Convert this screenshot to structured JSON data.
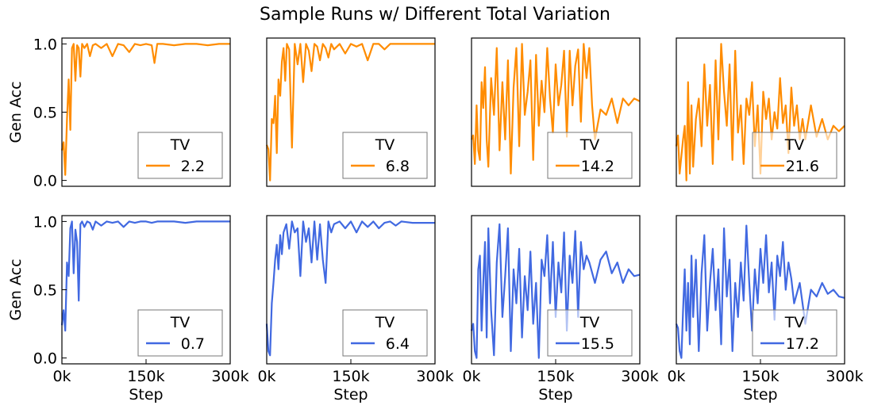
{
  "figure": {
    "title": "Sample Runs w/ Different Total Variation"
  },
  "chart_data": [
    {
      "type": "line",
      "row": 0,
      "col": 0,
      "color": "#FF8C00",
      "title": "",
      "xlabel": "",
      "ylabel": "Gen Acc",
      "xlim": [
        0,
        300000
      ],
      "ylim": [
        0,
        1
      ],
      "xticks": [],
      "xticklabels": [],
      "yticks": [
        0,
        0.5,
        1
      ],
      "yticklabels": [
        "0.0",
        "0.5",
        "1.0"
      ],
      "legend": {
        "title": "TV",
        "label": "2.2",
        "loc": "lower right"
      },
      "x": [
        0,
        3000,
        6000,
        9000,
        12000,
        15000,
        18000,
        21000,
        24000,
        27000,
        30000,
        33000,
        36000,
        40000,
        45000,
        50000,
        55000,
        60000,
        70000,
        80000,
        90000,
        100000,
        110000,
        120000,
        130000,
        140000,
        150000,
        160000,
        165000,
        170000,
        180000,
        200000,
        220000,
        240000,
        260000,
        280000,
        300000
      ],
      "y": [
        0.22,
        0.28,
        0.04,
        0.45,
        0.74,
        0.37,
        0.97,
        1.0,
        0.73,
        0.99,
        0.97,
        0.76,
        1.0,
        0.97,
        1.0,
        0.91,
        0.99,
        1.0,
        0.97,
        1.0,
        0.91,
        1.0,
        0.99,
        0.94,
        1.0,
        0.99,
        1.0,
        0.99,
        0.86,
        1.0,
        1.0,
        0.99,
        1.0,
        1.0,
        0.99,
        1.0,
        1.0
      ]
    },
    {
      "type": "line",
      "row": 0,
      "col": 1,
      "color": "#FF8C00",
      "title": "",
      "xlabel": "",
      "ylabel": "",
      "xlim": [
        0,
        300000
      ],
      "ylim": [
        0,
        1
      ],
      "xticks": [],
      "xticklabels": [],
      "yticks": [],
      "yticklabels": [],
      "legend": {
        "title": "TV",
        "label": "6.8",
        "loc": "lower right"
      },
      "x": [
        0,
        3000,
        6000,
        9000,
        12000,
        15000,
        18000,
        21000,
        24000,
        27000,
        30000,
        33000,
        36000,
        40000,
        45000,
        50000,
        55000,
        60000,
        65000,
        70000,
        75000,
        80000,
        85000,
        90000,
        95000,
        100000,
        105000,
        110000,
        115000,
        120000,
        130000,
        140000,
        150000,
        160000,
        170000,
        180000,
        190000,
        200000,
        210000,
        220000,
        230000,
        240000,
        260000,
        280000,
        300000
      ],
      "y": [
        0.26,
        0.23,
        0.0,
        0.45,
        0.42,
        0.62,
        0.2,
        0.74,
        0.62,
        0.87,
        0.97,
        0.73,
        1.0,
        0.96,
        0.24,
        1.0,
        0.85,
        1.0,
        0.72,
        1.0,
        0.95,
        0.8,
        1.0,
        0.98,
        0.88,
        1.0,
        0.97,
        0.9,
        1.0,
        0.96,
        1.0,
        0.93,
        1.0,
        0.98,
        1.0,
        0.88,
        1.0,
        1.0,
        0.96,
        1.0,
        1.0,
        1.0,
        1.0,
        1.0,
        1.0
      ]
    },
    {
      "type": "line",
      "row": 0,
      "col": 2,
      "color": "#FF8C00",
      "title": "",
      "xlabel": "",
      "ylabel": "",
      "xlim": [
        0,
        300000
      ],
      "ylim": [
        0,
        1
      ],
      "xticks": [],
      "xticklabels": [],
      "yticks": [],
      "yticklabels": [],
      "legend": {
        "title": "TV",
        "label": "14.2",
        "loc": "lower right"
      },
      "x": [
        0,
        3000,
        6000,
        9000,
        12000,
        15000,
        18000,
        21000,
        24000,
        27000,
        30000,
        35000,
        40000,
        45000,
        50000,
        55000,
        60000,
        65000,
        70000,
        75000,
        80000,
        85000,
        90000,
        95000,
        100000,
        105000,
        110000,
        115000,
        120000,
        125000,
        130000,
        135000,
        140000,
        145000,
        150000,
        155000,
        160000,
        165000,
        170000,
        175000,
        180000,
        185000,
        190000,
        195000,
        200000,
        205000,
        210000,
        215000,
        220000,
        230000,
        240000,
        250000,
        260000,
        270000,
        280000,
        290000,
        300000
      ],
      "y": [
        0.3,
        0.33,
        0.12,
        0.55,
        0.22,
        0.15,
        0.72,
        0.53,
        0.83,
        0.3,
        0.1,
        0.75,
        0.48,
        0.97,
        0.22,
        0.72,
        0.3,
        0.88,
        0.05,
        0.68,
        0.97,
        0.25,
        1.0,
        0.48,
        0.65,
        0.88,
        0.15,
        0.92,
        0.4,
        0.73,
        0.5,
        0.97,
        0.6,
        0.35,
        0.85,
        0.55,
        0.7,
        0.95,
        0.32,
        0.95,
        0.55,
        0.84,
        0.96,
        0.43,
        1.0,
        0.75,
        0.97,
        0.55,
        0.3,
        0.52,
        0.48,
        0.6,
        0.42,
        0.6,
        0.55,
        0.6,
        0.58
      ]
    },
    {
      "type": "line",
      "row": 0,
      "col": 3,
      "color": "#FF8C00",
      "title": "",
      "xlabel": "",
      "ylabel": "",
      "xlim": [
        0,
        300000
      ],
      "ylim": [
        0,
        1
      ],
      "xticks": [],
      "xticklabels": [],
      "yticks": [],
      "yticklabels": [],
      "legend": {
        "title": "TV",
        "label": "21.6",
        "loc": "lower right"
      },
      "x": [
        0,
        3000,
        6000,
        9000,
        12000,
        15000,
        18000,
        21000,
        24000,
        27000,
        30000,
        35000,
        40000,
        45000,
        50000,
        55000,
        60000,
        65000,
        70000,
        75000,
        80000,
        85000,
        90000,
        95000,
        100000,
        105000,
        110000,
        115000,
        120000,
        125000,
        130000,
        135000,
        140000,
        145000,
        150000,
        155000,
        160000,
        165000,
        170000,
        175000,
        180000,
        185000,
        190000,
        195000,
        200000,
        205000,
        210000,
        215000,
        220000,
        225000,
        230000,
        240000,
        250000,
        260000,
        270000,
        280000,
        290000,
        300000
      ],
      "y": [
        0.25,
        0.33,
        0.05,
        0.18,
        0.3,
        0.4,
        0.0,
        0.72,
        0.05,
        0.55,
        0.1,
        0.45,
        0.6,
        0.25,
        0.85,
        0.4,
        0.7,
        0.12,
        0.88,
        0.3,
        1.0,
        0.65,
        0.4,
        0.85,
        0.15,
        0.95,
        0.35,
        0.55,
        0.12,
        0.6,
        0.48,
        0.72,
        0.25,
        0.55,
        0.05,
        0.65,
        0.45,
        0.6,
        0.3,
        0.5,
        0.38,
        0.75,
        0.42,
        0.55,
        0.2,
        0.68,
        0.4,
        0.55,
        0.3,
        0.45,
        0.3,
        0.55,
        0.32,
        0.45,
        0.3,
        0.4,
        0.36,
        0.4
      ]
    },
    {
      "type": "line",
      "row": 1,
      "col": 0,
      "color": "#4169E1",
      "title": "",
      "xlabel": "Step",
      "ylabel": "Gen Acc",
      "xlim": [
        0,
        300000
      ],
      "ylim": [
        0,
        1
      ],
      "xticks": [
        0,
        150000,
        300000
      ],
      "xticklabels": [
        "0k",
        "150k",
        "300k"
      ],
      "yticks": [
        0,
        0.5,
        1
      ],
      "yticklabels": [
        "0.0",
        "0.5",
        "1.0"
      ],
      "legend": {
        "title": "TV",
        "label": "0.7",
        "loc": "lower right"
      },
      "x": [
        0,
        3000,
        6000,
        9000,
        12000,
        15000,
        18000,
        21000,
        24000,
        27000,
        30000,
        33000,
        36000,
        40000,
        45000,
        50000,
        55000,
        60000,
        70000,
        80000,
        90000,
        100000,
        110000,
        120000,
        130000,
        140000,
        150000,
        160000,
        170000,
        180000,
        200000,
        220000,
        240000,
        260000,
        280000,
        300000
      ],
      "y": [
        0.24,
        0.35,
        0.2,
        0.7,
        0.6,
        0.95,
        1.0,
        0.62,
        0.94,
        0.85,
        0.42,
        0.98,
        1.0,
        0.96,
        1.0,
        0.99,
        0.94,
        1.0,
        0.97,
        1.0,
        0.99,
        1.0,
        0.96,
        1.0,
        0.99,
        1.0,
        1.0,
        0.99,
        1.0,
        1.0,
        1.0,
        0.99,
        1.0,
        1.0,
        1.0,
        1.0
      ]
    },
    {
      "type": "line",
      "row": 1,
      "col": 1,
      "color": "#4169E1",
      "title": "",
      "xlabel": "Step",
      "ylabel": "",
      "xlim": [
        0,
        300000
      ],
      "ylim": [
        0,
        1
      ],
      "xticks": [
        0,
        150000,
        300000
      ],
      "xticklabels": [
        "0k",
        "150k",
        "300k"
      ],
      "yticks": [],
      "yticklabels": [],
      "legend": {
        "title": "TV",
        "label": "6.4",
        "loc": "lower right"
      },
      "x": [
        0,
        3000,
        6000,
        9000,
        12000,
        15000,
        18000,
        21000,
        24000,
        27000,
        30000,
        35000,
        40000,
        45000,
        50000,
        55000,
        60000,
        65000,
        70000,
        75000,
        80000,
        85000,
        90000,
        95000,
        100000,
        105000,
        110000,
        115000,
        120000,
        130000,
        140000,
        150000,
        160000,
        170000,
        180000,
        190000,
        200000,
        210000,
        220000,
        230000,
        240000,
        260000,
        280000,
        300000
      ],
      "y": [
        0.25,
        0.05,
        0.02,
        0.4,
        0.55,
        0.72,
        0.83,
        0.65,
        0.9,
        0.76,
        0.92,
        0.98,
        0.8,
        1.0,
        0.92,
        0.95,
        0.6,
        1.0,
        0.85,
        0.95,
        0.7,
        1.0,
        0.72,
        0.98,
        0.72,
        0.55,
        1.0,
        0.92,
        0.98,
        1.0,
        0.95,
        1.0,
        0.92,
        1.0,
        0.96,
        1.0,
        0.95,
        0.99,
        1.0,
        0.97,
        1.0,
        0.99,
        0.99,
        0.99
      ]
    },
    {
      "type": "line",
      "row": 1,
      "col": 2,
      "color": "#4169E1",
      "title": "",
      "xlabel": "Step",
      "ylabel": "",
      "xlim": [
        0,
        300000
      ],
      "ylim": [
        0,
        1
      ],
      "xticks": [
        0,
        150000,
        300000
      ],
      "xticklabels": [
        "0k",
        "150k",
        "300k"
      ],
      "yticks": [],
      "yticklabels": [],
      "legend": {
        "title": "TV",
        "label": "15.5",
        "loc": "lower right"
      },
      "x": [
        0,
        3000,
        6000,
        9000,
        12000,
        15000,
        18000,
        21000,
        24000,
        27000,
        30000,
        35000,
        40000,
        45000,
        50000,
        55000,
        60000,
        65000,
        70000,
        75000,
        80000,
        85000,
        90000,
        95000,
        100000,
        105000,
        110000,
        115000,
        120000,
        125000,
        130000,
        135000,
        140000,
        145000,
        150000,
        155000,
        160000,
        165000,
        170000,
        175000,
        180000,
        185000,
        190000,
        195000,
        200000,
        205000,
        210000,
        220000,
        230000,
        240000,
        250000,
        260000,
        270000,
        280000,
        290000,
        300000
      ],
      "y": [
        0.2,
        0.25,
        0.05,
        0.0,
        0.65,
        0.75,
        0.2,
        0.55,
        0.85,
        0.15,
        0.95,
        0.35,
        0.02,
        0.7,
        0.98,
        0.3,
        0.6,
        0.95,
        0.05,
        0.65,
        0.4,
        0.8,
        0.15,
        0.6,
        0.35,
        0.78,
        0.25,
        0.55,
        0.0,
        0.72,
        0.6,
        0.9,
        0.4,
        0.85,
        0.3,
        0.7,
        0.48,
        0.92,
        0.2,
        0.75,
        0.55,
        0.93,
        0.3,
        0.85,
        0.65,
        0.75,
        0.7,
        0.55,
        0.72,
        0.78,
        0.62,
        0.7,
        0.55,
        0.65,
        0.6,
        0.61
      ]
    },
    {
      "type": "line",
      "row": 1,
      "col": 3,
      "color": "#4169E1",
      "title": "",
      "xlabel": "Step",
      "ylabel": "",
      "xlim": [
        0,
        300000
      ],
      "ylim": [
        0,
        1
      ],
      "xticks": [
        0,
        150000,
        300000
      ],
      "xticklabels": [
        "0k",
        "150k",
        "300k"
      ],
      "yticks": [],
      "yticklabels": [],
      "legend": {
        "title": "TV",
        "label": "17.2",
        "loc": "lower right"
      },
      "x": [
        0,
        3000,
        6000,
        9000,
        12000,
        15000,
        18000,
        21000,
        24000,
        27000,
        30000,
        35000,
        40000,
        45000,
        50000,
        55000,
        60000,
        65000,
        70000,
        75000,
        80000,
        85000,
        90000,
        95000,
        100000,
        105000,
        110000,
        115000,
        120000,
        125000,
        130000,
        135000,
        140000,
        145000,
        150000,
        155000,
        160000,
        165000,
        170000,
        175000,
        180000,
        185000,
        190000,
        195000,
        200000,
        205000,
        210000,
        220000,
        230000,
        240000,
        250000,
        260000,
        270000,
        280000,
        290000,
        300000
      ],
      "y": [
        0.25,
        0.22,
        0.05,
        0.0,
        0.35,
        0.65,
        0.2,
        0.55,
        0.1,
        0.75,
        0.3,
        0.72,
        0.05,
        0.62,
        0.9,
        0.2,
        0.55,
        0.8,
        0.35,
        0.65,
        0.1,
        0.95,
        0.45,
        0.72,
        0.05,
        0.55,
        0.3,
        0.7,
        0.42,
        0.97,
        0.55,
        0.2,
        0.65,
        0.4,
        0.8,
        0.55,
        0.9,
        0.48,
        0.7,
        0.28,
        0.75,
        0.6,
        0.85,
        0.5,
        0.7,
        0.58,
        0.4,
        0.55,
        0.25,
        0.5,
        0.45,
        0.55,
        0.47,
        0.5,
        0.45,
        0.44
      ]
    }
  ]
}
